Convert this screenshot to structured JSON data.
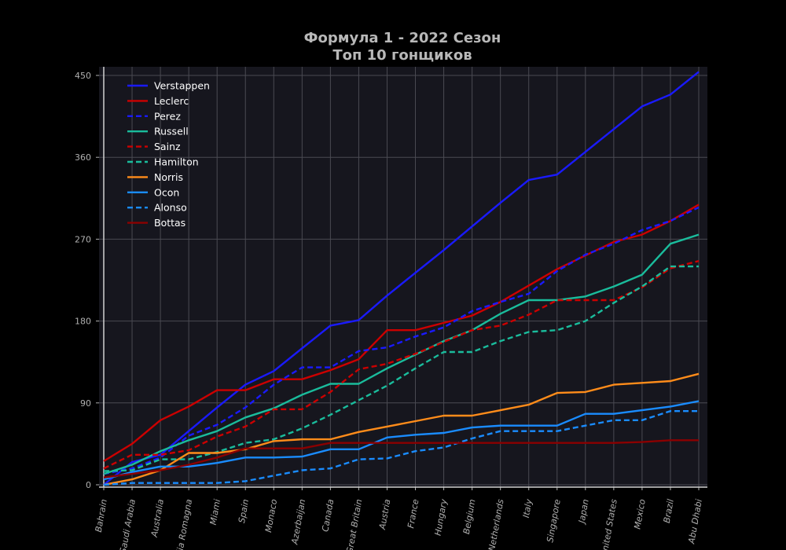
{
  "chart_data": {
    "type": "line",
    "title": "Формула 1 - 2022 Сезон",
    "subtitle": "Топ 10 гонщиков",
    "xlabel": "",
    "ylabel": "",
    "ylim": [
      0,
      455
    ],
    "yticks": [
      0,
      90,
      180,
      270,
      360,
      450
    ],
    "grid": true,
    "legend_position": "top-left",
    "categories": [
      "Bahrain",
      "Saudi Arabia",
      "Australia",
      "Emilia Romagna",
      "Miami",
      "Spain",
      "Monaco",
      "Azerbaijan",
      "Canada",
      "Great Britain",
      "Austria",
      "France",
      "Hungary",
      "Belgium",
      "Netherlands",
      "Italy",
      "Singapore",
      "Japan",
      "United States",
      "Mexico",
      "Brazil",
      "Abu Dhabi"
    ],
    "series": [
      {
        "name": "Verstappen",
        "color": "#1a1aff",
        "dash": "solid",
        "values": [
          0,
          25,
          33,
          59,
          85,
          110,
          125,
          150,
          175,
          181,
          208,
          233,
          258,
          284,
          310,
          335,
          341,
          366,
          391,
          416,
          429,
          454
        ]
      },
      {
        "name": "Leclerc",
        "color": "#cc0000",
        "dash": "solid",
        "values": [
          26,
          45,
          71,
          86,
          104,
          104,
          116,
          116,
          126,
          138,
          170,
          170,
          178,
          186,
          201,
          219,
          237,
          252,
          267,
          275,
          290,
          308
        ]
      },
      {
        "name": "Perez",
        "color": "#1a1aff",
        "dash": "dashed",
        "values": [
          12,
          18,
          30,
          54,
          66,
          85,
          110,
          129,
          129,
          147,
          151,
          163,
          173,
          191,
          201,
          210,
          235,
          253,
          265,
          280,
          290,
          305
        ]
      },
      {
        "name": "Russell",
        "color": "#1abc9c",
        "dash": "solid",
        "values": [
          12,
          22,
          37,
          49,
          59,
          74,
          84,
          99,
          111,
          111,
          128,
          143,
          158,
          170,
          188,
          203,
          203,
          207,
          218,
          231,
          265,
          275
        ]
      },
      {
        "name": "Sainz",
        "color": "#cc0000",
        "dash": "dashed",
        "values": [
          18,
          33,
          33,
          38,
          53,
          64,
          83,
          83,
          102,
          127,
          133,
          144,
          157,
          170,
          175,
          187,
          203,
          203,
          203,
          217,
          238,
          246
        ]
      },
      {
        "name": "Hamilton",
        "color": "#1abc9c",
        "dash": "dashed",
        "values": [
          15,
          16,
          28,
          28,
          36,
          46,
          50,
          62,
          77,
          93,
          109,
          128,
          146,
          146,
          158,
          168,
          170,
          180,
          200,
          218,
          240,
          240
        ]
      },
      {
        "name": "Norris",
        "color": "#ff8c1a",
        "dash": "solid",
        "values": [
          0,
          6,
          16,
          35,
          35,
          39,
          48,
          50,
          50,
          58,
          64,
          70,
          76,
          76,
          82,
          88,
          101,
          102,
          110,
          112,
          114,
          122
        ]
      },
      {
        "name": "Ocon",
        "color": "#1a8cff",
        "dash": "solid",
        "values": [
          6,
          14,
          20,
          20,
          24,
          30,
          30,
          31,
          39,
          39,
          52,
          55,
          57,
          63,
          65,
          65,
          65,
          78,
          78,
          82,
          86,
          92
        ]
      },
      {
        "name": "Alonso",
        "color": "#1a8cff",
        "dash": "dashed",
        "values": [
          0,
          2,
          2,
          2,
          2,
          4,
          10,
          16,
          18,
          28,
          29,
          37,
          41,
          51,
          59,
          59,
          59,
          65,
          71,
          71,
          81,
          81
        ]
      },
      {
        "name": "Bottas",
        "color": "#8b0000",
        "dash": "solid",
        "values": [
          8,
          12,
          16,
          22,
          30,
          40,
          40,
          40,
          46,
          46,
          46,
          46,
          46,
          46,
          46,
          46,
          46,
          46,
          46,
          47,
          49,
          49
        ]
      }
    ]
  }
}
